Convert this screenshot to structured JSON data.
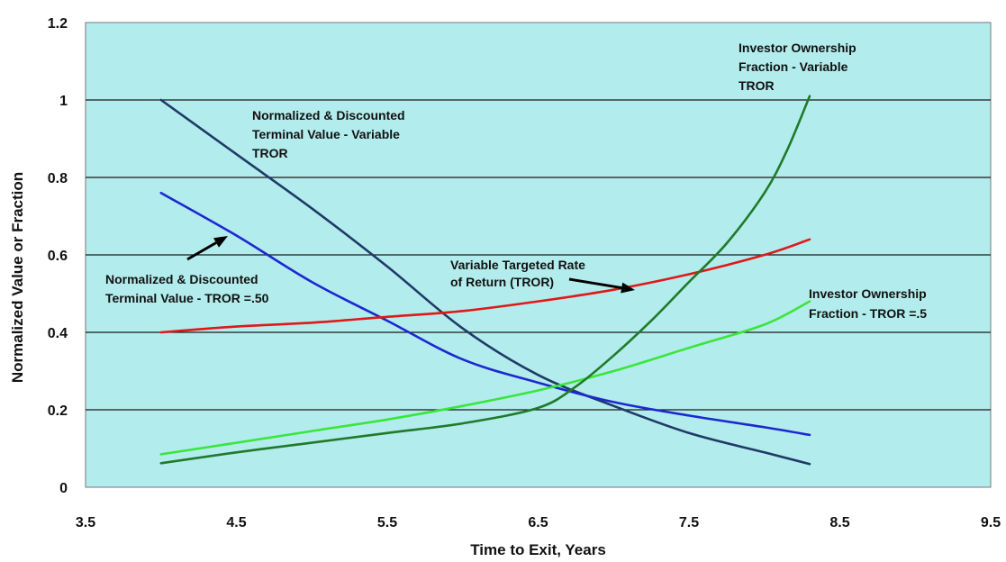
{
  "chart_data": {
    "type": "line",
    "title": "",
    "xlabel": "Time to Exit, Years",
    "ylabel": "Normalized Value or Fraction",
    "xlim": [
      3.5,
      9.5
    ],
    "ylim": [
      0,
      1.2
    ],
    "x_ticks": [
      "3.5",
      "4.5",
      "5.5",
      "6.5",
      "7.5",
      "8.5",
      "9.5"
    ],
    "y_ticks": [
      "0",
      "0.2",
      "0.4",
      "0.6",
      "0.8",
      "1",
      "1.2"
    ],
    "grid": "horizontal",
    "colors": {
      "plot_bg": "#b3ecec",
      "grid": "#1a1a1a"
    },
    "series": [
      {
        "key": "ntv_variable",
        "color": "#1f3a68",
        "points": [
          [
            4.0,
            1.0
          ],
          [
            4.5,
            0.86
          ],
          [
            5.0,
            0.72
          ],
          [
            5.5,
            0.57
          ],
          [
            6.0,
            0.41
          ],
          [
            6.5,
            0.29
          ],
          [
            7.0,
            0.21
          ],
          [
            7.5,
            0.14
          ],
          [
            8.0,
            0.09
          ],
          [
            8.3,
            0.06
          ]
        ]
      },
      {
        "key": "ntv_50",
        "color": "#1c28d0",
        "points": [
          [
            4.0,
            0.76
          ],
          [
            4.5,
            0.65
          ],
          [
            5.0,
            0.53
          ],
          [
            5.5,
            0.43
          ],
          [
            6.0,
            0.33
          ],
          [
            6.5,
            0.27
          ],
          [
            7.0,
            0.22
          ],
          [
            7.5,
            0.185
          ],
          [
            8.0,
            0.155
          ],
          [
            8.3,
            0.135
          ]
        ]
      },
      {
        "key": "variable_tror",
        "color": "#e01818",
        "points": [
          [
            4.0,
            0.4
          ],
          [
            4.5,
            0.415
          ],
          [
            5.0,
            0.425
          ],
          [
            5.5,
            0.44
          ],
          [
            6.0,
            0.455
          ],
          [
            6.5,
            0.48
          ],
          [
            7.0,
            0.51
          ],
          [
            7.5,
            0.55
          ],
          [
            8.0,
            0.6
          ],
          [
            8.3,
            0.64
          ]
        ]
      },
      {
        "key": "ownership_5",
        "color": "#3ae63a",
        "points": [
          [
            4.0,
            0.085
          ],
          [
            4.5,
            0.115
          ],
          [
            5.0,
            0.145
          ],
          [
            5.5,
            0.175
          ],
          [
            6.0,
            0.21
          ],
          [
            6.5,
            0.25
          ],
          [
            7.0,
            0.3
          ],
          [
            7.5,
            0.36
          ],
          [
            8.0,
            0.42
          ],
          [
            8.3,
            0.48
          ]
        ]
      },
      {
        "key": "ownership_variable",
        "color": "#1f7a2a",
        "points": [
          [
            4.0,
            0.062
          ],
          [
            4.5,
            0.09
          ],
          [
            5.0,
            0.115
          ],
          [
            5.5,
            0.14
          ],
          [
            6.0,
            0.165
          ],
          [
            6.5,
            0.205
          ],
          [
            6.75,
            0.26
          ],
          [
            7.0,
            0.34
          ],
          [
            7.25,
            0.43
          ],
          [
            7.5,
            0.53
          ],
          [
            7.75,
            0.63
          ],
          [
            8.0,
            0.76
          ],
          [
            8.15,
            0.87
          ],
          [
            8.3,
            1.01
          ]
        ]
      }
    ],
    "annotations": [
      {
        "key": "ntv_variable",
        "lines": [
          "Normalized & Discounted",
          "Terminal Value - Variable",
          "TROR"
        ]
      },
      {
        "key": "ntv_50",
        "lines": [
          "Normalized & Discounted",
          "Terminal Value -  TROR =.50"
        ]
      },
      {
        "key": "variable_tror",
        "lines": [
          "Variable Targeted Rate",
          "of Return (TROR)"
        ]
      },
      {
        "key": "ownership_variable",
        "lines": [
          "Investor Ownership",
          "Fraction - Variable",
          "TROR"
        ]
      },
      {
        "key": "ownership_5",
        "lines": [
          "Investor Ownership",
          "Fraction - TROR =.5"
        ]
      }
    ]
  }
}
